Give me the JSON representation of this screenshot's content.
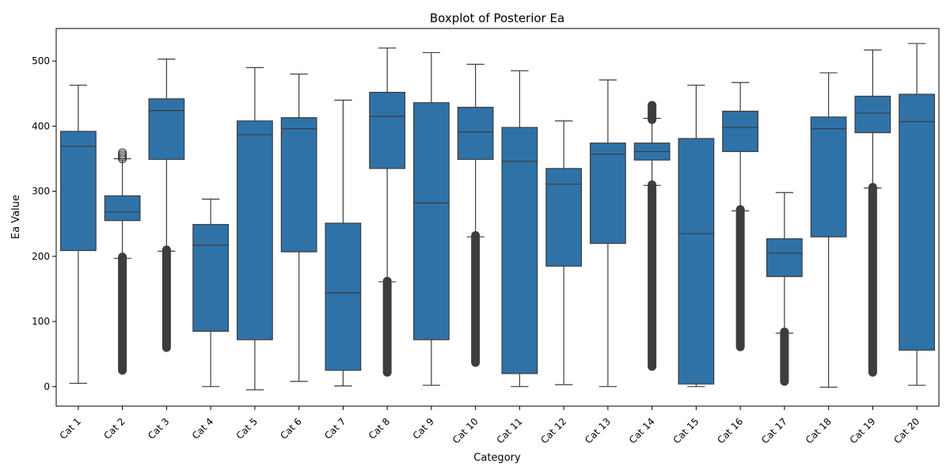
{
  "chart_data": {
    "type": "boxplot",
    "title": "Boxplot of Posterior Ea",
    "xlabel": "Category",
    "ylabel": "Ea Value",
    "ylim": [
      -30,
      550
    ],
    "yticks": [
      0,
      100,
      200,
      300,
      400,
      500
    ],
    "grid": false,
    "legend": "none",
    "color": "#2f72a8",
    "line_color": "#3d3d3d",
    "categories": [
      "Cat 1",
      "Cat 2",
      "Cat 3",
      "Cat 4",
      "Cat 5",
      "Cat 6",
      "Cat 7",
      "Cat 8",
      "Cat 9",
      "Cat 10",
      "Cat 11",
      "Cat 12",
      "Cat 13",
      "Cat 14",
      "Cat 15",
      "Cat 16",
      "Cat 17",
      "Cat 18",
      "Cat 19",
      "Cat 20"
    ],
    "boxes": [
      {
        "whisker_low": 5,
        "q1": 209,
        "median": 369,
        "q3": 392,
        "whisker_high": 463,
        "outliers": []
      },
      {
        "whisker_low": 197,
        "q1": 255,
        "median": 268,
        "q3": 293,
        "whisker_high": 350,
        "outliers": [
          [
            25,
            199
          ],
          350,
          353,
          356,
          359
        ]
      },
      {
        "whisker_low": 208,
        "q1": 349,
        "median": 424,
        "q3": 442,
        "whisker_high": 503,
        "outliers": [
          [
            60,
            210
          ]
        ]
      },
      {
        "whisker_low": 0,
        "q1": 85,
        "median": 217,
        "q3": 249,
        "whisker_high": 288,
        "outliers": []
      },
      {
        "whisker_low": -5,
        "q1": 72,
        "median": 387,
        "q3": 408,
        "whisker_high": 490,
        "outliers": []
      },
      {
        "whisker_low": 8,
        "q1": 207,
        "median": 396,
        "q3": 413,
        "whisker_high": 480,
        "outliers": []
      },
      {
        "whisker_low": 1,
        "q1": 25,
        "median": 144,
        "q3": 251,
        "whisker_high": 440,
        "outliers": []
      },
      {
        "whisker_low": 161,
        "q1": 335,
        "median": 415,
        "q3": 452,
        "whisker_high": 520,
        "outliers": [
          [
            22,
            162
          ]
        ]
      },
      {
        "whisker_low": 2,
        "q1": 72,
        "median": 282,
        "q3": 436,
        "whisker_high": 513,
        "outliers": []
      },
      {
        "whisker_low": 230,
        "q1": 349,
        "median": 391,
        "q3": 429,
        "whisker_high": 495,
        "outliers": [
          [
            37,
            232
          ]
        ]
      },
      {
        "whisker_low": 0,
        "q1": 20,
        "median": 346,
        "q3": 398,
        "whisker_high": 485,
        "outliers": []
      },
      {
        "whisker_low": 3,
        "q1": 185,
        "median": 311,
        "q3": 335,
        "whisker_high": 408,
        "outliers": []
      },
      {
        "whisker_low": 0,
        "q1": 220,
        "median": 357,
        "q3": 374,
        "whisker_high": 471,
        "outliers": []
      },
      {
        "whisker_low": 309,
        "q1": 348,
        "median": 361,
        "q3": 374,
        "whisker_high": 412,
        "outliers": [
          [
            31,
            310
          ],
          [
            410,
            432
          ]
        ]
      },
      {
        "whisker_low": 0,
        "q1": 4,
        "median": 235,
        "q3": 381,
        "whisker_high": 463,
        "outliers": []
      },
      {
        "whisker_low": 270,
        "q1": 361,
        "median": 398,
        "q3": 423,
        "whisker_high": 467,
        "outliers": [
          [
            61,
            272
          ]
        ]
      },
      {
        "whisker_low": 82,
        "q1": 169,
        "median": 205,
        "q3": 227,
        "whisker_high": 298,
        "outliers": [
          [
            8,
            84
          ]
        ]
      },
      {
        "whisker_low": -1,
        "q1": 230,
        "median": 396,
        "q3": 414,
        "whisker_high": 482,
        "outliers": []
      },
      {
        "whisker_low": 305,
        "q1": 390,
        "median": 420,
        "q3": 446,
        "whisker_high": 517,
        "outliers": [
          [
            22,
            306
          ]
        ]
      },
      {
        "whisker_low": 2,
        "q1": 56,
        "median": 407,
        "q3": 449,
        "whisker_high": 527,
        "outliers": []
      }
    ]
  }
}
